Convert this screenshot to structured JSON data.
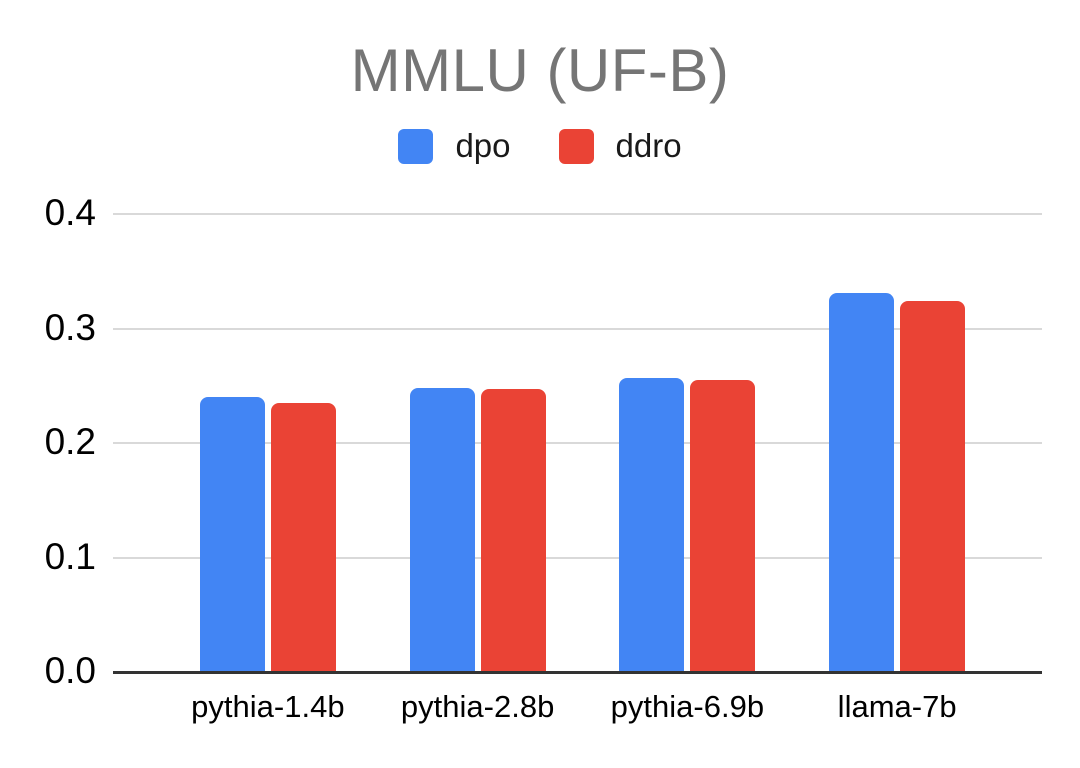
{
  "chart_data": {
    "type": "bar",
    "title": "MMLU (UF-B)",
    "categories": [
      "pythia-1.4b",
      "pythia-2.8b",
      "pythia-6.9b",
      "llama-7b"
    ],
    "series": [
      {
        "name": "dpo",
        "color": "#4285F4",
        "values": [
          0.24,
          0.248,
          0.257,
          0.331
        ]
      },
      {
        "name": "ddro",
        "color": "#EA4335",
        "values": [
          0.235,
          0.247,
          0.255,
          0.324
        ]
      }
    ],
    "xlabel": "",
    "ylabel": "",
    "ylim": [
      0,
      0.4
    ],
    "yticks": [
      0,
      0.1,
      0.2,
      0.3,
      0.4
    ],
    "ytick_labels": [
      "0.0",
      "0.1",
      "0.2",
      "0.3",
      "0.4"
    ],
    "grid": true,
    "legend_position": "top",
    "colors": {
      "title": "#757575",
      "gridline": "#d9d9d9",
      "axis_line": "#333333",
      "text": "#000000",
      "background": "#ffffff"
    }
  }
}
